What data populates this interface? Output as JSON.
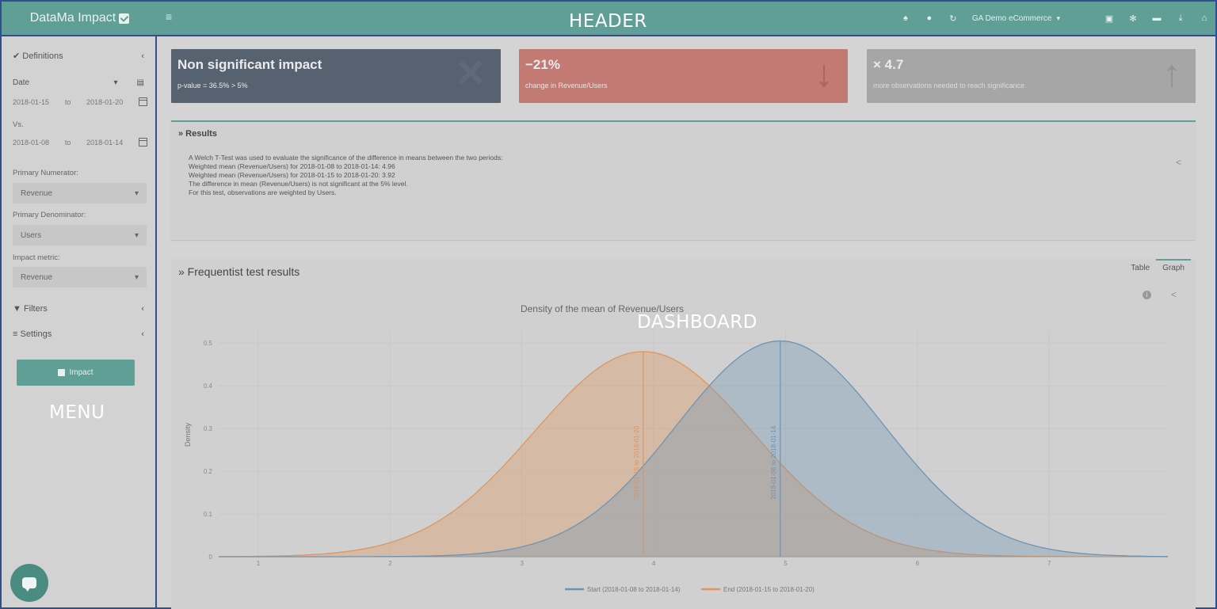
{
  "header": {
    "brand": "DataMa Impact",
    "overlay_label": "HEADER",
    "account": "GA Demo eCommerce",
    "icons": [
      "bell-icon",
      "info-icon",
      "refresh-icon",
      "save-icon",
      "settings-icon",
      "folder-icon",
      "download-icon",
      "home-icon"
    ]
  },
  "sidebar": {
    "definitions": "Definitions",
    "date_label": "Date",
    "period1": {
      "from": "2018-01-15",
      "sep": "to",
      "to": "2018-01-20"
    },
    "vs_label": "Vs.",
    "period2": {
      "from": "2018-01-08",
      "sep": "to",
      "to": "2018-01-14"
    },
    "primary_numerator_label": "Primary Numerator:",
    "primary_numerator_value": "Revenue",
    "primary_denominator_label": "Primary Denominator:",
    "primary_denominator_value": "Users",
    "impact_metric_label": "Impact metric:",
    "impact_metric_value": "Revenue",
    "filters": "Filters",
    "settings": "Settings",
    "impact_button": "Impact",
    "overlay_label": "MENU"
  },
  "kpis": [
    {
      "title": "Non significant impact",
      "subtitle": "p-value = 36.5% > 5%",
      "icon": "close-icon"
    },
    {
      "title": "−21%",
      "subtitle": "change in Revenue/Users",
      "icon": "arrow-down-icon"
    },
    {
      "title": "× 4.7",
      "subtitle": "more observations needed to reach significance",
      "icon": "arrow-up-icon"
    }
  ],
  "results": {
    "title": "» Results",
    "lines": [
      "A Welch T-Test was used to evaluate the significance of the difference in means between the two periods:",
      "Weighted mean (Revenue/Users) for 2018-01-08 to 2018-01-14: 4.96",
      "Weighted mean (Revenue/Users) for 2018-01-15 to 2018-01-20: 3.92",
      "The difference in mean (Revenue/Users) is not significant at the 5% level.",
      "For this test, observations are weighted by Users."
    ]
  },
  "frequentist": {
    "title": "» Frequentist test results",
    "tabs": [
      "Table",
      "Graph"
    ],
    "active_tab": "Graph",
    "overlay_label": "DASHBOARD"
  },
  "colors": {
    "header": "#5f9f95",
    "start_series": "#6d94b5",
    "end_series": "#e0955a",
    "kpi_neutral": "#566270",
    "kpi_negative": "#c27a72",
    "kpi_grey": "#a6a6a6"
  },
  "chart_data": {
    "type": "area",
    "title": "Density of the mean of Revenue/Users",
    "xlabel": "",
    "ylabel": "Density",
    "xlim": [
      0.7,
      7.9
    ],
    "ylim": [
      0,
      0.53
    ],
    "xticks": [
      1,
      2,
      3,
      4,
      5,
      6,
      7
    ],
    "yticks": [
      0,
      0.1,
      0.2,
      0.3,
      0.4,
      0.5
    ],
    "grid": true,
    "legend": "bottom",
    "series": [
      {
        "name": "Start (2018-01-08 to 2018-01-14)",
        "mean": 4.96,
        "sd": 0.79,
        "peak": 0.505,
        "marker_label": "2018-01-08 to 2018-01-14"
      },
      {
        "name": "End (2018-01-15 to 2018-01-20)",
        "mean": 3.92,
        "sd": 0.83,
        "peak": 0.48,
        "marker_label": "2018-01-15 to 2018-01-20"
      }
    ]
  }
}
